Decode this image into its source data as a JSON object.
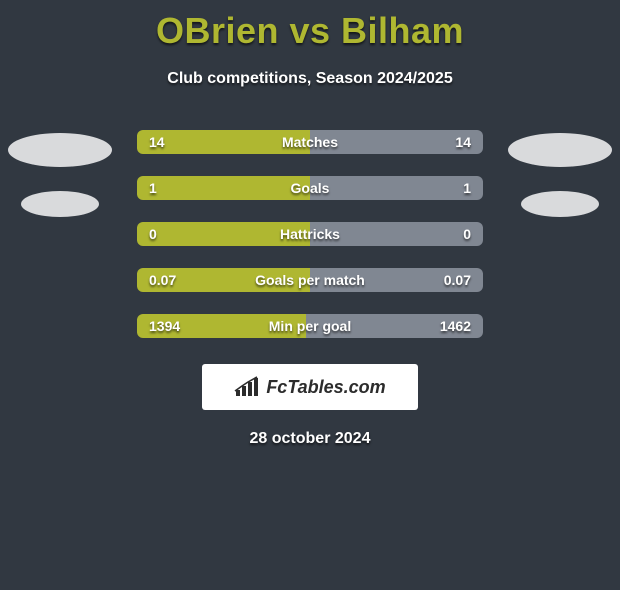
{
  "title": "OBrien vs Bilham",
  "subtitle": "Club competitions, Season 2024/2025",
  "date": "28 october 2024",
  "colors": {
    "accent_left": "#afb731",
    "accent_right": "#808792",
    "bg": "#313841",
    "title_color": "#afb731",
    "text": "#ffffff"
  },
  "bars": [
    {
      "label": "Matches",
      "left_val": "14",
      "right_val": "14",
      "left_pct": 50,
      "right_pct": 50
    },
    {
      "label": "Goals",
      "left_val": "1",
      "right_val": "1",
      "left_pct": 50,
      "right_pct": 50
    },
    {
      "label": "Hattricks",
      "left_val": "0",
      "right_val": "0",
      "left_pct": 50,
      "right_pct": 50
    },
    {
      "label": "Goals per match",
      "left_val": "0.07",
      "right_val": "0.07",
      "left_pct": 50,
      "right_pct": 50
    },
    {
      "label": "Min per goal",
      "left_val": "1394",
      "right_val": "1462",
      "left_pct": 48.8,
      "right_pct": 51.2
    }
  ],
  "logo_text": "FcTables.com"
}
